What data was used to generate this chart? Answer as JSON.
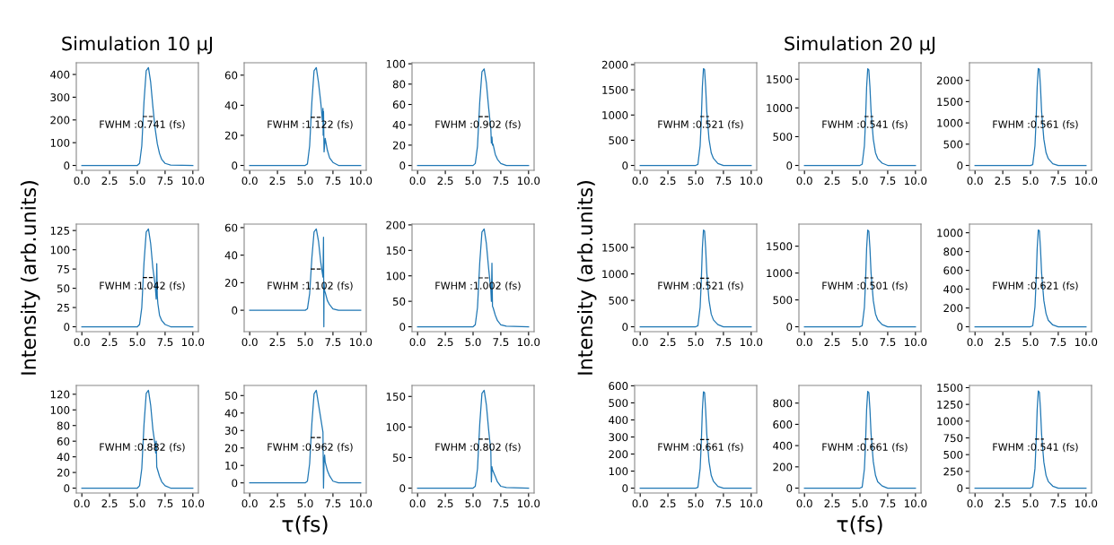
{
  "chart_data": [
    {
      "type": "line",
      "title": "Simulation 10 μJ",
      "xlim": [
        -0.5,
        10.5
      ],
      "xticks": [
        {
          "value": 0,
          "label": "0.0"
        },
        {
          "value": 2.5,
          "label": "2.5"
        },
        {
          "value": 5,
          "label": "5.0"
        },
        {
          "value": 7.5,
          "label": "7.5"
        },
        {
          "value": 10,
          "label": "10.0"
        }
      ],
      "ylim": [
        -21.5,
        451.5
      ],
      "yticks": [
        0,
        100,
        200,
        300,
        400
      ],
      "annotations": [
        "FWHM :0.741 (fs)"
      ],
      "series": [
        {
          "color": "#1f77b4",
          "x": [
            0,
            5.0,
            5.2,
            5.4,
            5.6,
            5.8,
            6.0,
            6.2,
            6.4,
            6.6,
            6.8,
            7.0,
            7.2,
            7.5,
            8.0,
            10
          ],
          "values": [
            0,
            0,
            9,
            86,
            280,
            417,
            430,
            366,
            258,
            163,
            95,
            52,
            26,
            9,
            2,
            0
          ]
        },
        {
          "color": "#000000",
          "line_style": "dashed",
          "x": [
            5.5,
            6.4
          ],
          "values": [
            215,
            215
          ]
        }
      ]
    },
    {
      "type": "line",
      "xlim": [
        -0.5,
        10.5
      ],
      "xticks": [
        {
          "value": 0,
          "label": "0.0"
        },
        {
          "value": 2.5,
          "label": "2.5"
        },
        {
          "value": 5,
          "label": "5.0"
        },
        {
          "value": 7.5,
          "label": "7.5"
        },
        {
          "value": 10,
          "label": "10.0"
        }
      ],
      "ylim": [
        -3.25,
        68.25
      ],
      "yticks": [
        0,
        20,
        40,
        60
      ],
      "annotations": [
        "FWHM :1.122 (fs)"
      ],
      "series": [
        {
          "color": "#1f77b4",
          "x": [
            0,
            5.0,
            5.2,
            5.4,
            5.6,
            5.8,
            6.0,
            6.2,
            6.4,
            6.55,
            6.6,
            6.62,
            6.65,
            6.7,
            6.8,
            7.0,
            7.2,
            7.5,
            8.0,
            10
          ],
          "values": [
            0,
            0,
            1,
            13,
            42,
            63,
            65,
            55,
            42,
            30,
            38,
            20,
            36,
            9,
            18,
            10,
            5,
            2,
            0,
            0
          ]
        },
        {
          "color": "#000000",
          "line_style": "dashed",
          "x": [
            5.5,
            6.4
          ],
          "values": [
            32,
            32
          ]
        }
      ]
    },
    {
      "type": "line",
      "xlim": [
        -0.5,
        10.5
      ],
      "xticks": [
        {
          "value": 0,
          "label": "0.0"
        },
        {
          "value": 2.5,
          "label": "2.5"
        },
        {
          "value": 5,
          "label": "5.0"
        },
        {
          "value": 7.5,
          "label": "7.5"
        },
        {
          "value": 10,
          "label": "10.0"
        }
      ],
      "ylim": [
        -4.75,
        101
      ],
      "yticks": [
        0,
        20,
        40,
        60,
        80,
        100
      ],
      "annotations": [
        "FWHM :0.902 (fs)"
      ],
      "series": [
        {
          "color": "#1f77b4",
          "x": [
            0,
            5.0,
            5.2,
            5.4,
            5.6,
            5.8,
            6.0,
            6.2,
            6.4,
            6.6,
            6.65,
            6.7,
            6.75,
            6.8,
            7.0,
            7.2,
            7.5,
            8.0,
            10
          ],
          "values": [
            0,
            0,
            2,
            19,
            62,
            92,
            95,
            81,
            57,
            36,
            22,
            28,
            20,
            21,
            11,
            6,
            2,
            0,
            0
          ]
        },
        {
          "color": "#000000",
          "line_style": "dashed",
          "x": [
            5.5,
            6.4
          ],
          "values": [
            48,
            48
          ]
        }
      ]
    },
    {
      "type": "line",
      "ylabel": "Intensity (arb.units)",
      "xlim": [
        -0.5,
        10.5
      ],
      "xticks": [
        {
          "value": 0,
          "label": "0.0"
        },
        {
          "value": 2.5,
          "label": "2.5"
        },
        {
          "value": 5,
          "label": "5.0"
        },
        {
          "value": 7.5,
          "label": "7.5"
        },
        {
          "value": 10,
          "label": "10.0"
        }
      ],
      "ylim": [
        -6.35,
        133.35
      ],
      "yticks": [
        0,
        25,
        50,
        75,
        100,
        125
      ],
      "annotations": [
        "FWHM :1.042 (fs)"
      ],
      "series": [
        {
          "color": "#1f77b4",
          "x": [
            0,
            5.0,
            5.2,
            5.4,
            5.6,
            5.8,
            6.0,
            6.2,
            6.4,
            6.6,
            6.7,
            6.75,
            6.8,
            6.85,
            7.0,
            7.2,
            7.5,
            8.0,
            10
          ],
          "values": [
            0,
            0,
            3,
            25,
            83,
            123,
            127,
            108,
            76,
            55,
            36,
            82,
            40,
            30,
            15,
            8,
            3,
            0,
            0
          ]
        },
        {
          "color": "#000000",
          "line_style": "dashed",
          "x": [
            5.5,
            6.4
          ],
          "values": [
            64,
            64
          ]
        }
      ]
    },
    {
      "type": "line",
      "xlim": [
        -0.5,
        10.5
      ],
      "xticks": [
        {
          "value": 0,
          "label": "0.0"
        },
        {
          "value": 2.5,
          "label": "2.5"
        },
        {
          "value": 5,
          "label": "5.0"
        },
        {
          "value": 7.5,
          "label": "7.5"
        },
        {
          "value": 10,
          "label": "10.0"
        }
      ],
      "ylim": [
        -15.55,
        62.55
      ],
      "yticks": [
        0,
        20,
        40,
        60
      ],
      "annotations": [
        "FWHM :1.102 (fs)"
      ],
      "series": [
        {
          "color": "#1f77b4",
          "x": [
            0,
            5.0,
            5.2,
            5.4,
            5.6,
            5.8,
            6.0,
            6.2,
            6.4,
            6.6,
            6.65,
            6.68,
            6.7,
            6.75,
            6.8,
            7.0,
            7.2,
            7.5,
            8.0,
            10
          ],
          "values": [
            0,
            0,
            1,
            12,
            38,
            57,
            59,
            50,
            35,
            24,
            53,
            -12,
            20,
            14,
            13,
            7,
            4,
            1,
            0,
            0
          ]
        },
        {
          "color": "#000000",
          "line_style": "dashed",
          "x": [
            5.5,
            6.4
          ],
          "values": [
            30,
            30
          ]
        }
      ]
    },
    {
      "type": "line",
      "xlim": [
        -0.5,
        10.5
      ],
      "xticks": [
        {
          "value": 0,
          "label": "0.0"
        },
        {
          "value": 2.5,
          "label": "2.5"
        },
        {
          "value": 5,
          "label": "5.0"
        },
        {
          "value": 7.5,
          "label": "7.5"
        },
        {
          "value": 10,
          "label": "10.0"
        }
      ],
      "ylim": [
        -9.6,
        201.6
      ],
      "yticks": [
        0,
        50,
        100,
        150,
        200
      ],
      "annotations": [
        "FWHM :1.002 (fs)"
      ],
      "series": [
        {
          "color": "#1f77b4",
          "x": [
            0,
            5.0,
            5.2,
            5.4,
            5.6,
            5.8,
            6.0,
            6.2,
            6.4,
            6.6,
            6.65,
            6.7,
            6.75,
            6.8,
            7.0,
            7.2,
            7.5,
            8.0,
            10
          ],
          "values": [
            0,
            0,
            4,
            38,
            125,
            186,
            192,
            163,
            115,
            73,
            50,
            125,
            40,
            38,
            23,
            12,
            4,
            1,
            0
          ]
        },
        {
          "color": "#000000",
          "line_style": "dashed",
          "x": [
            5.5,
            6.4
          ],
          "values": [
            96,
            96
          ]
        }
      ]
    },
    {
      "type": "line",
      "xlim": [
        -0.5,
        10.5
      ],
      "xticks": [
        {
          "value": 0,
          "label": "0.0"
        },
        {
          "value": 2.5,
          "label": "2.5"
        },
        {
          "value": 5,
          "label": "5.0"
        },
        {
          "value": 7.5,
          "label": "7.5"
        },
        {
          "value": 10,
          "label": "10.0"
        }
      ],
      "ylim": [
        -6.25,
        131.25
      ],
      "yticks": [
        0,
        20,
        40,
        60,
        80,
        100,
        120
      ],
      "annotations": [
        "FWHM :0.882 (fs)"
      ],
      "series": [
        {
          "color": "#1f77b4",
          "x": [
            0,
            5.0,
            5.2,
            5.4,
            5.6,
            5.8,
            6.0,
            6.2,
            6.4,
            6.6,
            6.65,
            6.7,
            6.75,
            7.0,
            7.2,
            7.5,
            8.0,
            10
          ],
          "values": [
            0,
            0,
            3,
            25,
            81,
            121,
            125,
            106,
            75,
            55,
            45,
            60,
            27,
            15,
            8,
            3,
            0,
            0
          ]
        },
        {
          "color": "#000000",
          "line_style": "dashed",
          "x": [
            5.5,
            6.4
          ],
          "values": [
            62,
            62
          ]
        }
      ]
    },
    {
      "type": "line",
      "xlabel": "τ(fs)",
      "xlim": [
        -0.5,
        10.5
      ],
      "xticks": [
        {
          "value": 0,
          "label": "0.0"
        },
        {
          "value": 2.5,
          "label": "2.5"
        },
        {
          "value": 5,
          "label": "5.0"
        },
        {
          "value": 7.5,
          "label": "7.5"
        },
        {
          "value": 10,
          "label": "10.0"
        }
      ],
      "ylim": [
        -5.8,
        55.8
      ],
      "yticks": [
        0,
        10,
        20,
        30,
        40,
        50
      ],
      "annotations": [
        "FWHM :0.962 (fs)"
      ],
      "series": [
        {
          "color": "#1f77b4",
          "x": [
            0,
            5.0,
            5.2,
            5.4,
            5.6,
            5.8,
            6.0,
            6.2,
            6.4,
            6.6,
            6.65,
            6.7,
            6.75,
            6.8,
            7.0,
            7.2,
            7.5,
            8.0,
            10
          ],
          "values": [
            0,
            0,
            1,
            11,
            34,
            51,
            53,
            45,
            37,
            29,
            -3,
            13,
            16,
            12,
            7,
            4,
            1,
            0,
            0
          ]
        },
        {
          "color": "#000000",
          "line_style": "dashed",
          "x": [
            5.5,
            6.4
          ],
          "values": [
            26,
            26
          ]
        }
      ]
    },
    {
      "type": "line",
      "xlim": [
        -0.5,
        10.5
      ],
      "xticks": [
        {
          "value": 0,
          "label": "0.0"
        },
        {
          "value": 2.5,
          "label": "2.5"
        },
        {
          "value": 5,
          "label": "5.0"
        },
        {
          "value": 7.5,
          "label": "7.5"
        },
        {
          "value": 10,
          "label": "10.0"
        }
      ],
      "ylim": [
        -8,
        168
      ],
      "yticks": [
        0,
        50,
        100,
        150
      ],
      "annotations": [
        "FWHM :0.802 (fs)"
      ],
      "series": [
        {
          "color": "#1f77b4",
          "x": [
            0,
            5.0,
            5.2,
            5.4,
            5.6,
            5.8,
            6.0,
            6.2,
            6.4,
            6.6,
            6.65,
            6.7,
            6.75,
            7.0,
            7.2,
            7.5,
            8.0,
            10
          ],
          "values": [
            0,
            0,
            3,
            32,
            104,
            155,
            160,
            136,
            96,
            61,
            10,
            35,
            30,
            19,
            10,
            3,
            1,
            0
          ]
        },
        {
          "color": "#000000",
          "line_style": "dashed",
          "x": [
            5.5,
            6.4
          ],
          "values": [
            80,
            80
          ]
        }
      ]
    },
    {
      "type": "line",
      "xlim": [
        -0.5,
        10.5
      ],
      "xticks": [
        {
          "value": 0,
          "label": "0.0"
        },
        {
          "value": 2.5,
          "label": "2.5"
        },
        {
          "value": 5,
          "label": "5.0"
        },
        {
          "value": 7.5,
          "label": "7.5"
        },
        {
          "value": 10,
          "label": "10.0"
        }
      ],
      "ylim": [
        -97,
        2037
      ],
      "yticks": [
        0,
        500,
        1000,
        1500,
        2000
      ],
      "annotations": [
        "FWHM :0.521 (fs)"
      ],
      "series": [
        {
          "color": "#1f77b4",
          "x": [
            0,
            5.0,
            5.2,
            5.4,
            5.5,
            5.6,
            5.7,
            5.8,
            5.9,
            6.0,
            6.2,
            6.4,
            6.6,
            7.0,
            7.5,
            10
          ],
          "values": [
            0,
            0,
            20,
            390,
            870,
            1550,
            1920,
            1900,
            1550,
            1070,
            520,
            250,
            140,
            40,
            0,
            0
          ]
        },
        {
          "color": "#000000",
          "line_style": "dashed",
          "x": [
            5.4,
            6.2
          ],
          "values": [
            970,
            970
          ]
        }
      ]
    },
    {
      "type": "line",
      "title": "Simulation 20 μJ",
      "xlim": [
        -0.5,
        10.5
      ],
      "xticks": [
        {
          "value": 0,
          "label": "0.0"
        },
        {
          "value": 2.5,
          "label": "2.5"
        },
        {
          "value": 5,
          "label": "5.0"
        },
        {
          "value": 7.5,
          "label": "7.5"
        },
        {
          "value": 10,
          "label": "10.0"
        }
      ],
      "ylim": [
        -85,
        1785
      ],
      "yticks": [
        0,
        500,
        1000,
        1500
      ],
      "annotations": [
        "FWHM :0.541 (fs)"
      ],
      "series": [
        {
          "color": "#1f77b4",
          "x": [
            0,
            5.0,
            5.2,
            5.4,
            5.5,
            5.6,
            5.7,
            5.8,
            5.9,
            6.0,
            6.2,
            6.4,
            6.6,
            7.0,
            7.5,
            10
          ],
          "values": [
            0,
            0,
            20,
            340,
            760,
            1360,
            1680,
            1660,
            1360,
            940,
            460,
            220,
            120,
            40,
            0,
            0
          ]
        },
        {
          "color": "#000000",
          "line_style": "dashed",
          "x": [
            5.4,
            6.2
          ],
          "values": [
            850,
            850
          ]
        }
      ]
    },
    {
      "type": "line",
      "xlim": [
        -0.5,
        10.5
      ],
      "xticks": [
        {
          "value": 0,
          "label": "0.0"
        },
        {
          "value": 2.5,
          "label": "2.5"
        },
        {
          "value": 5,
          "label": "5.0"
        },
        {
          "value": 7.5,
          "label": "7.5"
        },
        {
          "value": 10,
          "label": "10.0"
        }
      ],
      "ylim": [
        -115,
        2415
      ],
      "yticks": [
        0,
        500,
        1000,
        1500,
        2000
      ],
      "annotations": [
        "FWHM :0.561 (fs)"
      ],
      "series": [
        {
          "color": "#1f77b4",
          "x": [
            0,
            5.0,
            5.2,
            5.4,
            5.5,
            5.6,
            5.7,
            5.8,
            5.9,
            6.0,
            6.2,
            6.4,
            6.6,
            7.0,
            7.5,
            10
          ],
          "values": [
            0,
            0,
            20,
            460,
            1040,
            1840,
            2280,
            2260,
            1840,
            1260,
            620,
            300,
            160,
            40,
            0,
            0
          ]
        },
        {
          "color": "#000000",
          "line_style": "dashed",
          "x": [
            5.4,
            6.2
          ],
          "values": [
            1150,
            1150
          ]
        }
      ]
    },
    {
      "type": "line",
      "ylabel": "Intensity (arb.units)",
      "xlim": [
        -0.5,
        10.5
      ],
      "xticks": [
        {
          "value": 0,
          "label": "0.0"
        },
        {
          "value": 2.5,
          "label": "2.5"
        },
        {
          "value": 5,
          "label": "5.0"
        },
        {
          "value": 7.5,
          "label": "7.5"
        },
        {
          "value": 10,
          "label": "10.0"
        }
      ],
      "ylim": [
        -92.5,
        1942.5
      ],
      "yticks": [
        0,
        500,
        1000,
        1500
      ],
      "annotations": [
        "FWHM :0.521 (fs)"
      ],
      "series": [
        {
          "color": "#1f77b4",
          "x": [
            0,
            5.0,
            5.2,
            5.4,
            5.5,
            5.6,
            5.7,
            5.8,
            5.9,
            6.0,
            6.2,
            6.4,
            6.6,
            7.0,
            7.5,
            10
          ],
          "values": [
            0,
            0,
            20,
            370,
            830,
            1480,
            1830,
            1810,
            1480,
            1020,
            500,
            240,
            130,
            40,
            0,
            0
          ]
        },
        {
          "color": "#000000",
          "line_style": "dashed",
          "x": [
            5.4,
            6.2
          ],
          "values": [
            920,
            920
          ]
        }
      ]
    },
    {
      "type": "line",
      "xlim": [
        -0.5,
        10.5
      ],
      "xticks": [
        {
          "value": 0,
          "label": "0.0"
        },
        {
          "value": 2.5,
          "label": "2.5"
        },
        {
          "value": 5,
          "label": "5.0"
        },
        {
          "value": 7.5,
          "label": "7.5"
        },
        {
          "value": 10,
          "label": "10.0"
        }
      ],
      "ylim": [
        -91,
        1911
      ],
      "yticks": [
        0,
        500,
        1000,
        1500
      ],
      "annotations": [
        "FWHM :0.501 (fs)"
      ],
      "series": [
        {
          "color": "#1f77b4",
          "x": [
            0,
            5.0,
            5.2,
            5.4,
            5.5,
            5.6,
            5.7,
            5.8,
            5.9,
            6.0,
            6.2,
            6.4,
            6.6,
            7.0,
            7.5,
            10
          ],
          "values": [
            0,
            0,
            20,
            360,
            820,
            1460,
            1800,
            1780,
            1460,
            1000,
            490,
            240,
            130,
            40,
            0,
            0
          ]
        },
        {
          "color": "#000000",
          "line_style": "dashed",
          "x": [
            5.4,
            6.2
          ],
          "values": [
            910,
            910
          ]
        }
      ]
    },
    {
      "type": "line",
      "xlim": [
        -0.5,
        10.5
      ],
      "xticks": [
        {
          "value": 0,
          "label": "0.0"
        },
        {
          "value": 2.5,
          "label": "2.5"
        },
        {
          "value": 5,
          "label": "5.0"
        },
        {
          "value": 7.5,
          "label": "7.5"
        },
        {
          "value": 10,
          "label": "10.0"
        }
      ],
      "ylim": [
        -52,
        1092
      ],
      "yticks": [
        0,
        200,
        400,
        600,
        800,
        1000
      ],
      "annotations": [
        "FWHM :0.621 (fs)"
      ],
      "series": [
        {
          "color": "#1f77b4",
          "x": [
            0,
            5.0,
            5.2,
            5.4,
            5.5,
            5.6,
            5.7,
            5.8,
            5.9,
            6.0,
            6.2,
            6.4,
            6.6,
            7.0,
            7.5,
            10
          ],
          "values": [
            0,
            0,
            10,
            210,
            470,
            830,
            1030,
            1020,
            830,
            570,
            280,
            140,
            70,
            20,
            0,
            0
          ]
        },
        {
          "color": "#000000",
          "line_style": "dashed",
          "x": [
            5.4,
            6.2
          ],
          "values": [
            520,
            520
          ]
        }
      ]
    },
    {
      "type": "line",
      "xlim": [
        -0.5,
        10.5
      ],
      "xticks": [
        {
          "value": 0,
          "label": "0.0"
        },
        {
          "value": 2.5,
          "label": "2.5"
        },
        {
          "value": 5,
          "label": "5.0"
        },
        {
          "value": 7.5,
          "label": "7.5"
        },
        {
          "value": 10,
          "label": "10.0"
        }
      ],
      "ylim": [
        -28.5,
        602
      ],
      "yticks": [
        0,
        100,
        200,
        300,
        400,
        500,
        600
      ],
      "annotations": [
        "FWHM :0.661 (fs)"
      ],
      "series": [
        {
          "color": "#1f77b4",
          "x": [
            0,
            5.0,
            5.2,
            5.4,
            5.5,
            5.6,
            5.7,
            5.8,
            5.9,
            6.0,
            6.2,
            6.4,
            6.6,
            7.0,
            7.5,
            10
          ],
          "values": [
            0,
            0,
            5,
            115,
            255,
            455,
            565,
            560,
            455,
            315,
            155,
            75,
            40,
            10,
            0,
            0
          ]
        },
        {
          "color": "#000000",
          "line_style": "dashed",
          "x": [
            5.4,
            6.2
          ],
          "values": [
            285,
            285
          ]
        }
      ]
    },
    {
      "type": "line",
      "xlabel": "τ(fs)",
      "xlim": [
        -0.5,
        10.5
      ],
      "xticks": [
        {
          "value": 0,
          "label": "0.0"
        },
        {
          "value": 2.5,
          "label": "2.5"
        },
        {
          "value": 5,
          "label": "5.0"
        },
        {
          "value": 7.5,
          "label": "7.5"
        },
        {
          "value": 10,
          "label": "10.0"
        }
      ],
      "ylim": [
        -46,
        966
      ],
      "yticks": [
        0,
        200,
        400,
        600,
        800
      ],
      "annotations": [
        "FWHM :0.661 (fs)"
      ],
      "series": [
        {
          "color": "#1f77b4",
          "x": [
            0,
            5.0,
            5.2,
            5.4,
            5.5,
            5.6,
            5.7,
            5.8,
            5.9,
            6.0,
            6.2,
            6.4,
            6.6,
            7.0,
            7.5,
            10
          ],
          "values": [
            0,
            0,
            10,
            180,
            410,
            740,
            910,
            900,
            740,
            510,
            250,
            120,
            60,
            20,
            0,
            0
          ]
        },
        {
          "color": "#000000",
          "line_style": "dashed",
          "x": [
            5.4,
            6.2
          ],
          "values": [
            460,
            460
          ]
        }
      ]
    },
    {
      "type": "line",
      "xlim": [
        -0.5,
        10.5
      ],
      "xticks": [
        {
          "value": 0,
          "label": "0.0"
        },
        {
          "value": 2.5,
          "label": "2.5"
        },
        {
          "value": 5,
          "label": "5.0"
        },
        {
          "value": 7.5,
          "label": "7.5"
        },
        {
          "value": 10,
          "label": "10.0"
        }
      ],
      "ylim": [
        -73,
        1533
      ],
      "yticks": [
        0,
        250,
        500,
        750,
        1000,
        1250,
        1500
      ],
      "annotations": [
        "FWHM :0.541 (fs)"
      ],
      "series": [
        {
          "color": "#1f77b4",
          "x": [
            0,
            5.0,
            5.2,
            5.4,
            5.5,
            5.6,
            5.7,
            5.8,
            5.9,
            6.0,
            6.2,
            6.4,
            6.6,
            7.0,
            7.5,
            10
          ],
          "values": [
            0,
            0,
            20,
            290,
            660,
            1170,
            1450,
            1430,
            1170,
            800,
            390,
            190,
            100,
            30,
            0,
            0
          ]
        },
        {
          "color": "#000000",
          "line_style": "dashed",
          "x": [
            5.4,
            6.2
          ],
          "values": [
            730,
            730
          ]
        }
      ]
    }
  ]
}
